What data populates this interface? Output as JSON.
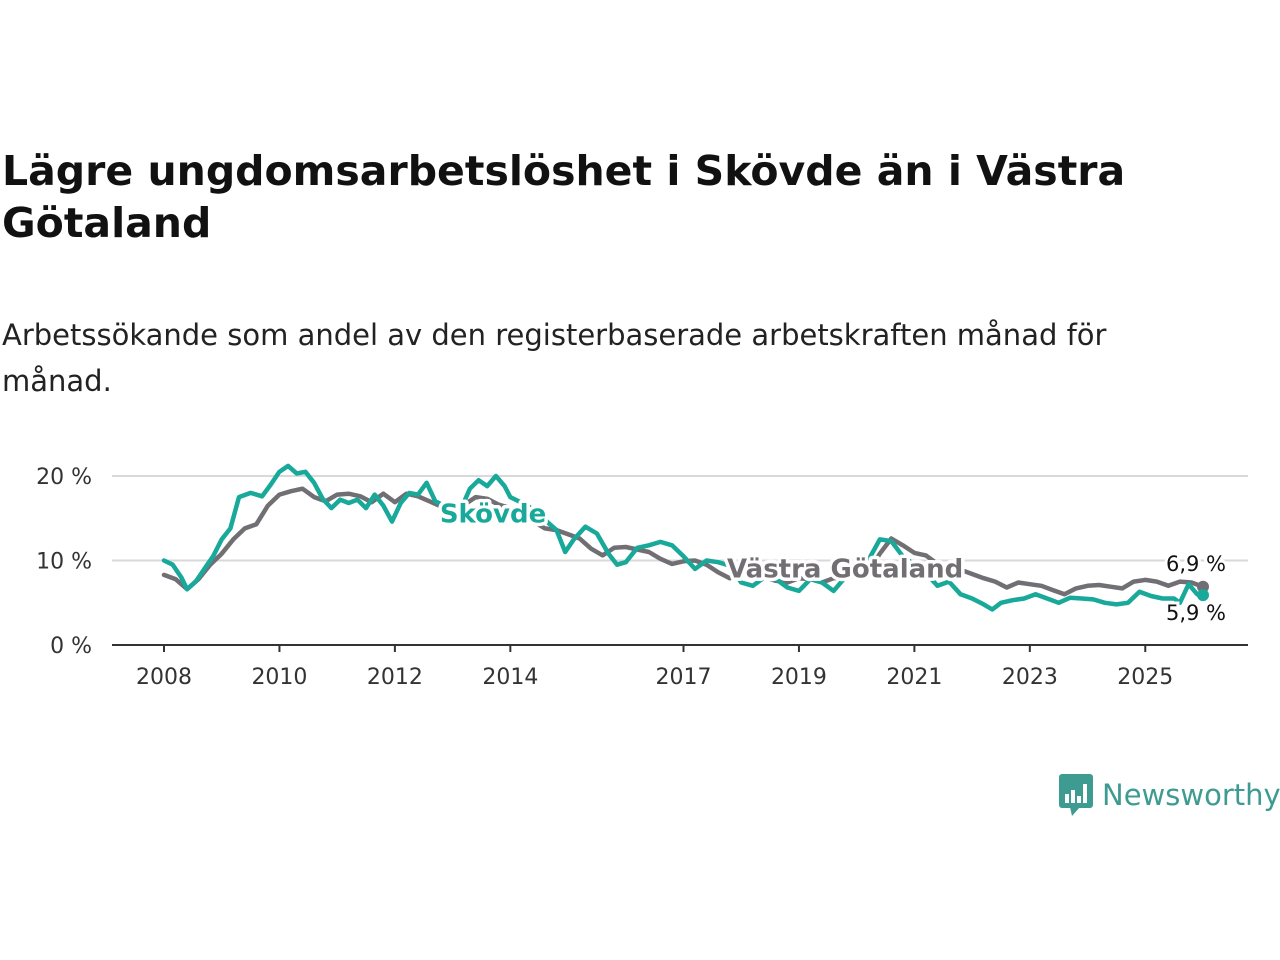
{
  "title": "Lägre ungdomsarbetslöshet i Skövde än i Västra Götaland",
  "subtitle": "Arbetssökande som andel av den registerbaserade arbetskraften månad för månad.",
  "brand": {
    "name": "Newsworthy",
    "icon": "newsworthy-logo-icon",
    "color": "#3d9b91"
  },
  "chart_data": {
    "type": "line",
    "title": "Lägre ungdomsarbetslöshet i Skövde än i Västra Götaland",
    "xlabel": "",
    "ylabel": "",
    "xlim": [
      2008.0,
      2026.0
    ],
    "ylim": [
      0,
      20
    ],
    "grid": true,
    "x_ticks": [
      {
        "value": 2008,
        "label": "2008"
      },
      {
        "value": 2010,
        "label": "2010"
      },
      {
        "value": 2012,
        "label": "2012"
      },
      {
        "value": 2014,
        "label": "2014"
      },
      {
        "value": 2017,
        "label": "2017"
      },
      {
        "value": 2019,
        "label": "2019"
      },
      {
        "value": 2021,
        "label": "2021"
      },
      {
        "value": 2023,
        "label": "2023"
      },
      {
        "value": 2025,
        "label": "2025"
      }
    ],
    "y_ticks": [
      {
        "value": 0,
        "label": "0 %"
      },
      {
        "value": 10,
        "label": "10 %"
      },
      {
        "value": 20,
        "label": "20 %"
      }
    ],
    "series": [
      {
        "name": "Västra Götaland",
        "color": "#716f74",
        "label": "Västra Götaland",
        "label_x": 2019.8,
        "label_y": 8.0,
        "end_label": "6,9 %",
        "points": [
          [
            2008.0,
            8.3
          ],
          [
            2008.2,
            7.8
          ],
          [
            2008.4,
            6.6
          ],
          [
            2008.6,
            7.8
          ],
          [
            2008.8,
            9.5
          ],
          [
            2009.0,
            10.8
          ],
          [
            2009.2,
            12.5
          ],
          [
            2009.4,
            13.8
          ],
          [
            2009.6,
            14.3
          ],
          [
            2009.8,
            16.5
          ],
          [
            2010.0,
            17.8
          ],
          [
            2010.2,
            18.2
          ],
          [
            2010.4,
            18.5
          ],
          [
            2010.6,
            17.5
          ],
          [
            2010.8,
            17.0
          ],
          [
            2011.0,
            17.8
          ],
          [
            2011.2,
            17.9
          ],
          [
            2011.4,
            17.6
          ],
          [
            2011.6,
            16.9
          ],
          [
            2011.8,
            17.9
          ],
          [
            2012.0,
            16.9
          ],
          [
            2012.2,
            17.9
          ],
          [
            2012.4,
            17.6
          ],
          [
            2012.6,
            17.0
          ],
          [
            2012.8,
            16.4
          ],
          [
            2013.0,
            16.2
          ],
          [
            2013.2,
            16.6
          ],
          [
            2013.4,
            17.5
          ],
          [
            2013.6,
            17.3
          ],
          [
            2013.8,
            16.6
          ],
          [
            2014.0,
            16.2
          ],
          [
            2014.2,
            15.6
          ],
          [
            2014.4,
            14.6
          ],
          [
            2014.6,
            13.8
          ],
          [
            2014.8,
            13.6
          ],
          [
            2015.0,
            13.1
          ],
          [
            2015.2,
            12.6
          ],
          [
            2015.4,
            11.4
          ],
          [
            2015.6,
            10.6
          ],
          [
            2015.8,
            11.5
          ],
          [
            2016.0,
            11.6
          ],
          [
            2016.2,
            11.3
          ],
          [
            2016.4,
            11.0
          ],
          [
            2016.6,
            10.2
          ],
          [
            2016.8,
            9.6
          ],
          [
            2017.0,
            9.9
          ],
          [
            2017.2,
            10.0
          ],
          [
            2017.4,
            9.5
          ],
          [
            2017.6,
            8.6
          ],
          [
            2017.8,
            7.9
          ],
          [
            2018.0,
            8.3
          ],
          [
            2018.2,
            8.5
          ],
          [
            2018.4,
            8.0
          ],
          [
            2018.6,
            7.6
          ],
          [
            2018.8,
            7.4
          ],
          [
            2019.0,
            7.9
          ],
          [
            2019.2,
            7.8
          ],
          [
            2019.4,
            7.4
          ],
          [
            2019.6,
            7.9
          ],
          [
            2019.8,
            8.0
          ],
          [
            2020.0,
            8.2
          ],
          [
            2020.2,
            8.6
          ],
          [
            2020.4,
            10.8
          ],
          [
            2020.6,
            12.6
          ],
          [
            2020.8,
            11.8
          ],
          [
            2021.0,
            10.9
          ],
          [
            2021.2,
            10.6
          ],
          [
            2021.4,
            9.6
          ],
          [
            2021.6,
            9.3
          ],
          [
            2021.8,
            8.9
          ],
          [
            2022.0,
            8.4
          ],
          [
            2022.2,
            7.9
          ],
          [
            2022.4,
            7.5
          ],
          [
            2022.6,
            6.8
          ],
          [
            2022.8,
            7.4
          ],
          [
            2023.0,
            7.2
          ],
          [
            2023.2,
            7.0
          ],
          [
            2023.4,
            6.5
          ],
          [
            2023.6,
            6.0
          ],
          [
            2023.8,
            6.7
          ],
          [
            2024.0,
            7.0
          ],
          [
            2024.2,
            7.1
          ],
          [
            2024.4,
            6.9
          ],
          [
            2024.6,
            6.7
          ],
          [
            2024.8,
            7.5
          ],
          [
            2025.0,
            7.7
          ],
          [
            2025.2,
            7.5
          ],
          [
            2025.4,
            7.0
          ],
          [
            2025.6,
            7.5
          ],
          [
            2025.8,
            7.4
          ],
          [
            2026.0,
            6.9
          ]
        ]
      },
      {
        "name": "Skövde",
        "color": "#18a99a",
        "label": "Skövde",
        "label_x": 2013.7,
        "label_y": 14.5,
        "end_label": "5,9 %",
        "points": [
          [
            2008.0,
            10.0
          ],
          [
            2008.15,
            9.5
          ],
          [
            2008.3,
            8.0
          ],
          [
            2008.4,
            6.6
          ],
          [
            2008.55,
            7.5
          ],
          [
            2008.7,
            9.0
          ],
          [
            2008.85,
            10.5
          ],
          [
            2009.0,
            12.5
          ],
          [
            2009.15,
            13.8
          ],
          [
            2009.3,
            17.5
          ],
          [
            2009.5,
            18.0
          ],
          [
            2009.7,
            17.6
          ],
          [
            2009.85,
            19.0
          ],
          [
            2010.0,
            20.5
          ],
          [
            2010.15,
            21.2
          ],
          [
            2010.3,
            20.3
          ],
          [
            2010.45,
            20.5
          ],
          [
            2010.6,
            19.2
          ],
          [
            2010.75,
            17.3
          ],
          [
            2010.9,
            16.2
          ],
          [
            2011.05,
            17.2
          ],
          [
            2011.2,
            16.8
          ],
          [
            2011.35,
            17.2
          ],
          [
            2011.5,
            16.2
          ],
          [
            2011.65,
            17.8
          ],
          [
            2011.8,
            16.5
          ],
          [
            2011.95,
            14.6
          ],
          [
            2012.1,
            16.8
          ],
          [
            2012.25,
            18.0
          ],
          [
            2012.4,
            17.8
          ],
          [
            2012.55,
            19.2
          ],
          [
            2012.7,
            17.0
          ],
          [
            2012.85,
            16.5
          ],
          [
            2013.0,
            15.0
          ],
          [
            2013.15,
            16.2
          ],
          [
            2013.3,
            18.5
          ],
          [
            2013.45,
            19.5
          ],
          [
            2013.6,
            18.8
          ],
          [
            2013.75,
            20.0
          ],
          [
            2013.9,
            18.8
          ],
          [
            2014.0,
            17.5
          ],
          [
            2014.3,
            16.5
          ],
          [
            2014.6,
            14.8
          ],
          [
            2014.8,
            13.6
          ],
          [
            2014.95,
            11.0
          ],
          [
            2015.1,
            12.5
          ],
          [
            2015.3,
            14.0
          ],
          [
            2015.5,
            13.2
          ],
          [
            2015.7,
            10.8
          ],
          [
            2015.85,
            9.5
          ],
          [
            2016.0,
            9.8
          ],
          [
            2016.2,
            11.5
          ],
          [
            2016.4,
            11.8
          ],
          [
            2016.6,
            12.2
          ],
          [
            2016.8,
            11.8
          ],
          [
            2017.0,
            10.5
          ],
          [
            2017.2,
            9.0
          ],
          [
            2017.4,
            10.0
          ],
          [
            2017.6,
            9.8
          ],
          [
            2017.8,
            9.4
          ],
          [
            2018.0,
            7.4
          ],
          [
            2018.2,
            7.0
          ],
          [
            2018.4,
            8.0
          ],
          [
            2018.6,
            7.8
          ],
          [
            2018.8,
            6.8
          ],
          [
            2019.0,
            6.4
          ],
          [
            2019.2,
            7.8
          ],
          [
            2019.4,
            7.4
          ],
          [
            2019.6,
            6.4
          ],
          [
            2019.8,
            8.0
          ],
          [
            2020.0,
            8.5
          ],
          [
            2020.2,
            10.0
          ],
          [
            2020.4,
            12.5
          ],
          [
            2020.6,
            12.3
          ],
          [
            2020.8,
            10.5
          ],
          [
            2021.0,
            9.5
          ],
          [
            2021.2,
            8.5
          ],
          [
            2021.4,
            7.0
          ],
          [
            2021.6,
            7.5
          ],
          [
            2021.8,
            6.0
          ],
          [
            2022.0,
            5.5
          ],
          [
            2022.2,
            4.8
          ],
          [
            2022.35,
            4.2
          ],
          [
            2022.5,
            5.0
          ],
          [
            2022.7,
            5.3
          ],
          [
            2022.9,
            5.5
          ],
          [
            2023.1,
            6.0
          ],
          [
            2023.3,
            5.5
          ],
          [
            2023.5,
            5.0
          ],
          [
            2023.7,
            5.6
          ],
          [
            2023.9,
            5.5
          ],
          [
            2024.1,
            5.4
          ],
          [
            2024.3,
            5.0
          ],
          [
            2024.5,
            4.8
          ],
          [
            2024.7,
            5.0
          ],
          [
            2024.9,
            6.3
          ],
          [
            2025.1,
            5.8
          ],
          [
            2025.3,
            5.5
          ],
          [
            2025.5,
            5.5
          ],
          [
            2025.6,
            5.0
          ],
          [
            2025.75,
            7.2
          ],
          [
            2025.9,
            6.0
          ],
          [
            2026.0,
            5.9
          ]
        ]
      }
    ]
  }
}
